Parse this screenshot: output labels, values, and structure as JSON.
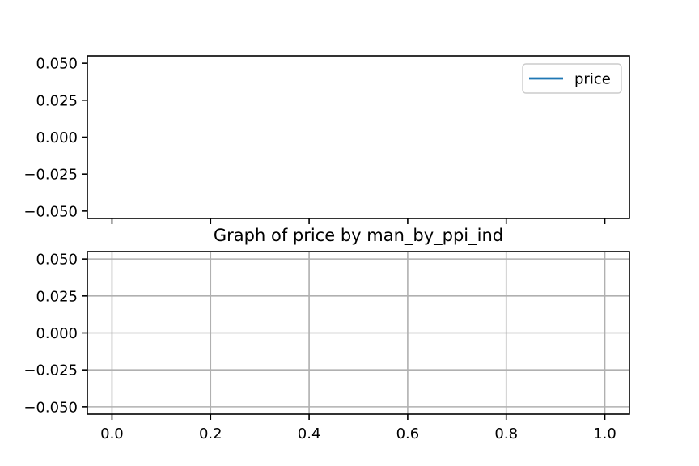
{
  "chart_data": [
    {
      "type": "line",
      "title": "",
      "xlabel": "",
      "ylabel": "",
      "x": [],
      "series": [
        {
          "name": "price",
          "values": [],
          "color": "#1f77b4"
        }
      ],
      "xlim": [
        -0.05,
        1.05
      ],
      "ylim": [
        -0.055,
        0.055
      ],
      "xticks": [
        0.0,
        0.2,
        0.4,
        0.6,
        0.8,
        1.0
      ],
      "show_x_tick_labels": false,
      "yticks": [
        0.05,
        0.025,
        0.0,
        -0.025,
        -0.05
      ],
      "ytick_labels": [
        "0.050",
        "0.025",
        "0.000",
        "−0.025",
        "−0.050"
      ],
      "grid": false,
      "legend": {
        "placement": "top-right",
        "entries": [
          "price"
        ]
      }
    },
    {
      "type": "line",
      "title": "Graph of price by man_by_ppi_ind",
      "xlabel": "",
      "ylabel": "",
      "x": [],
      "series": [],
      "xlim": [
        -0.05,
        1.05
      ],
      "ylim": [
        -0.055,
        0.055
      ],
      "xticks": [
        0.0,
        0.2,
        0.4,
        0.6,
        0.8,
        1.0
      ],
      "xtick_labels": [
        "0.0",
        "0.2",
        "0.4",
        "0.6",
        "0.8",
        "1.0"
      ],
      "yticks": [
        0.05,
        0.025,
        0.0,
        -0.025,
        -0.05
      ],
      "ytick_labels": [
        "0.050",
        "0.025",
        "0.000",
        "−0.025",
        "−0.050"
      ],
      "grid": true,
      "grid_color": "#b0b0b0"
    }
  ]
}
